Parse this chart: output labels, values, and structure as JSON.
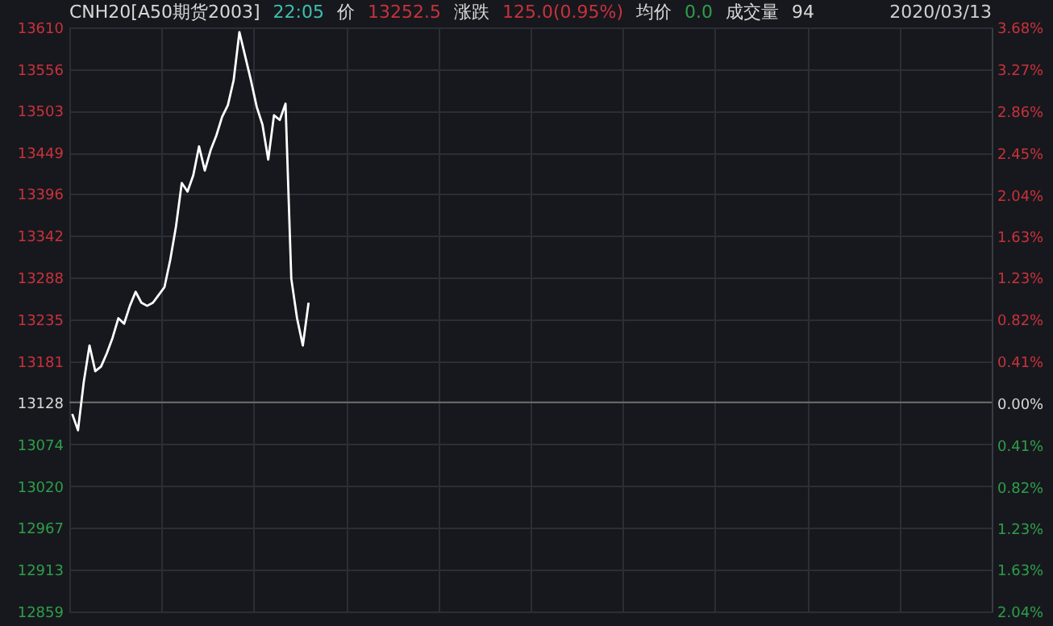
{
  "chart_data": {
    "type": "line",
    "title": "CNH20[A50期货2003]",
    "annotations": [
      "22:05",
      "价",
      "13252.5",
      "涨跌",
      "125.0(0.95%)",
      "均价",
      "0.0",
      "成交量",
      "94",
      "2020/03/13"
    ],
    "categories": [
      null,
      null,
      null,
      null,
      null,
      null,
      null,
      null,
      null,
      null,
      null,
      null,
      null,
      null,
      null,
      null,
      null,
      null,
      null,
      null,
      null,
      null,
      null,
      null,
      null,
      null,
      null,
      null,
      null,
      null,
      null,
      null,
      null,
      null,
      null,
      null,
      null,
      null,
      null,
      null,
      null,
      null,
      null,
      null,
      null,
      null,
      null,
      null,
      null,
      null,
      null,
      null,
      null,
      null,
      null,
      null,
      null,
      null,
      null,
      null,
      null,
      null,
      null,
      null,
      null,
      null,
      null,
      null,
      null,
      null,
      null,
      null,
      null,
      null,
      null,
      null,
      null,
      null,
      null,
      null,
      null,
      null,
      null,
      null,
      null,
      null,
      null,
      null,
      null,
      null,
      null,
      null,
      null,
      null,
      null,
      null,
      null,
      null,
      null,
      null,
      null,
      null,
      null,
      null,
      null,
      null,
      null,
      null,
      null,
      null,
      null,
      null,
      null,
      null,
      null,
      null,
      null,
      null,
      null,
      null,
      null,
      null,
      null,
      null,
      null,
      null,
      null,
      null,
      null,
      null,
      null,
      null,
      null,
      null,
      null,
      null,
      null,
      null,
      null,
      null,
      null,
      null,
      null,
      null,
      null,
      null,
      null,
      null,
      null,
      null,
      null,
      null,
      null,
      null,
      null,
      null,
      null,
      null,
      null,
      null
    ],
    "series": [
      {
        "color": "#ffffff",
        "values": [
          13113,
          13092,
          13154,
          13201,
          13168,
          13174,
          13191,
          13211,
          13236,
          13229,
          13252,
          13270,
          13256,
          13252,
          13256,
          13266,
          13276,
          13311,
          13354,
          13410,
          13399,
          13420,
          13457,
          13426,
          13452,
          13471,
          13495,
          13510,
          13542,
          13604,
          13573,
          13542,
          13508,
          13485,
          13440,
          13497,
          13491,
          13512,
          13287,
          13236,
          13201,
          13256,
          null,
          null,
          null,
          null,
          null,
          null,
          null,
          null,
          null,
          null,
          null,
          null,
          null,
          null,
          null,
          null,
          null,
          null,
          null,
          null,
          null,
          null,
          null,
          null,
          null,
          null,
          null,
          null,
          null,
          null,
          null,
          null,
          null,
          null,
          null,
          null,
          null,
          null,
          null,
          null,
          null,
          null,
          null,
          null,
          null,
          null,
          null,
          null,
          null,
          null,
          null,
          null,
          null,
          null,
          null,
          null,
          null,
          null,
          null,
          null,
          null,
          null,
          null,
          null,
          null,
          null,
          null,
          null,
          null,
          null,
          null,
          null,
          null,
          null,
          null,
          null,
          null,
          null,
          null,
          null,
          null,
          null,
          null,
          null,
          null,
          null,
          null,
          null,
          null,
          null,
          null,
          null,
          null,
          null,
          null,
          null,
          null,
          null,
          null,
          null,
          null,
          null,
          null,
          null,
          null,
          null,
          null,
          null,
          null,
          null,
          null,
          null,
          null,
          null,
          null,
          null,
          null,
          null
        ]
      }
    ],
    "ylim": [
      12859,
      13610
    ],
    "yticks": [
      12859,
      12913,
      12967,
      13020,
      13074,
      13128,
      13181,
      13235,
      13288,
      13342,
      13396,
      13449,
      13503,
      13556,
      13610
    ],
    "y2lim": [
      -2.04,
      3.68
    ],
    "y2ticks": [
      {
        "value": -2.04,
        "label": "2.04%"
      },
      {
        "value": -1.63,
        "label": "1.63%"
      },
      {
        "value": -1.23,
        "label": "1.23%"
      },
      {
        "value": -0.82,
        "label": "0.82%"
      },
      {
        "value": -0.41,
        "label": "0.41%"
      },
      {
        "value": 0,
        "label": "0.00%"
      },
      {
        "value": 0.41,
        "label": "0.41%"
      },
      {
        "value": 0.82,
        "label": "0.82%"
      },
      {
        "value": 1.23,
        "label": "1.23%"
      },
      {
        "value": 1.63,
        "label": "1.63%"
      },
      {
        "value": 2.04,
        "label": "2.04%"
      },
      {
        "value": 2.45,
        "label": "2.45%"
      },
      {
        "value": 2.86,
        "label": "2.86%"
      },
      {
        "value": 3.27,
        "label": "3.27%"
      },
      {
        "value": 3.68,
        "label": "3.68%"
      }
    ],
    "ref_lines": [
      {
        "axis": "y",
        "value": 13128,
        "color": "#6e6e6e"
      }
    ],
    "grid": true,
    "tick_labels": "y",
    "line_style": "solid",
    "marker": "none"
  }
}
